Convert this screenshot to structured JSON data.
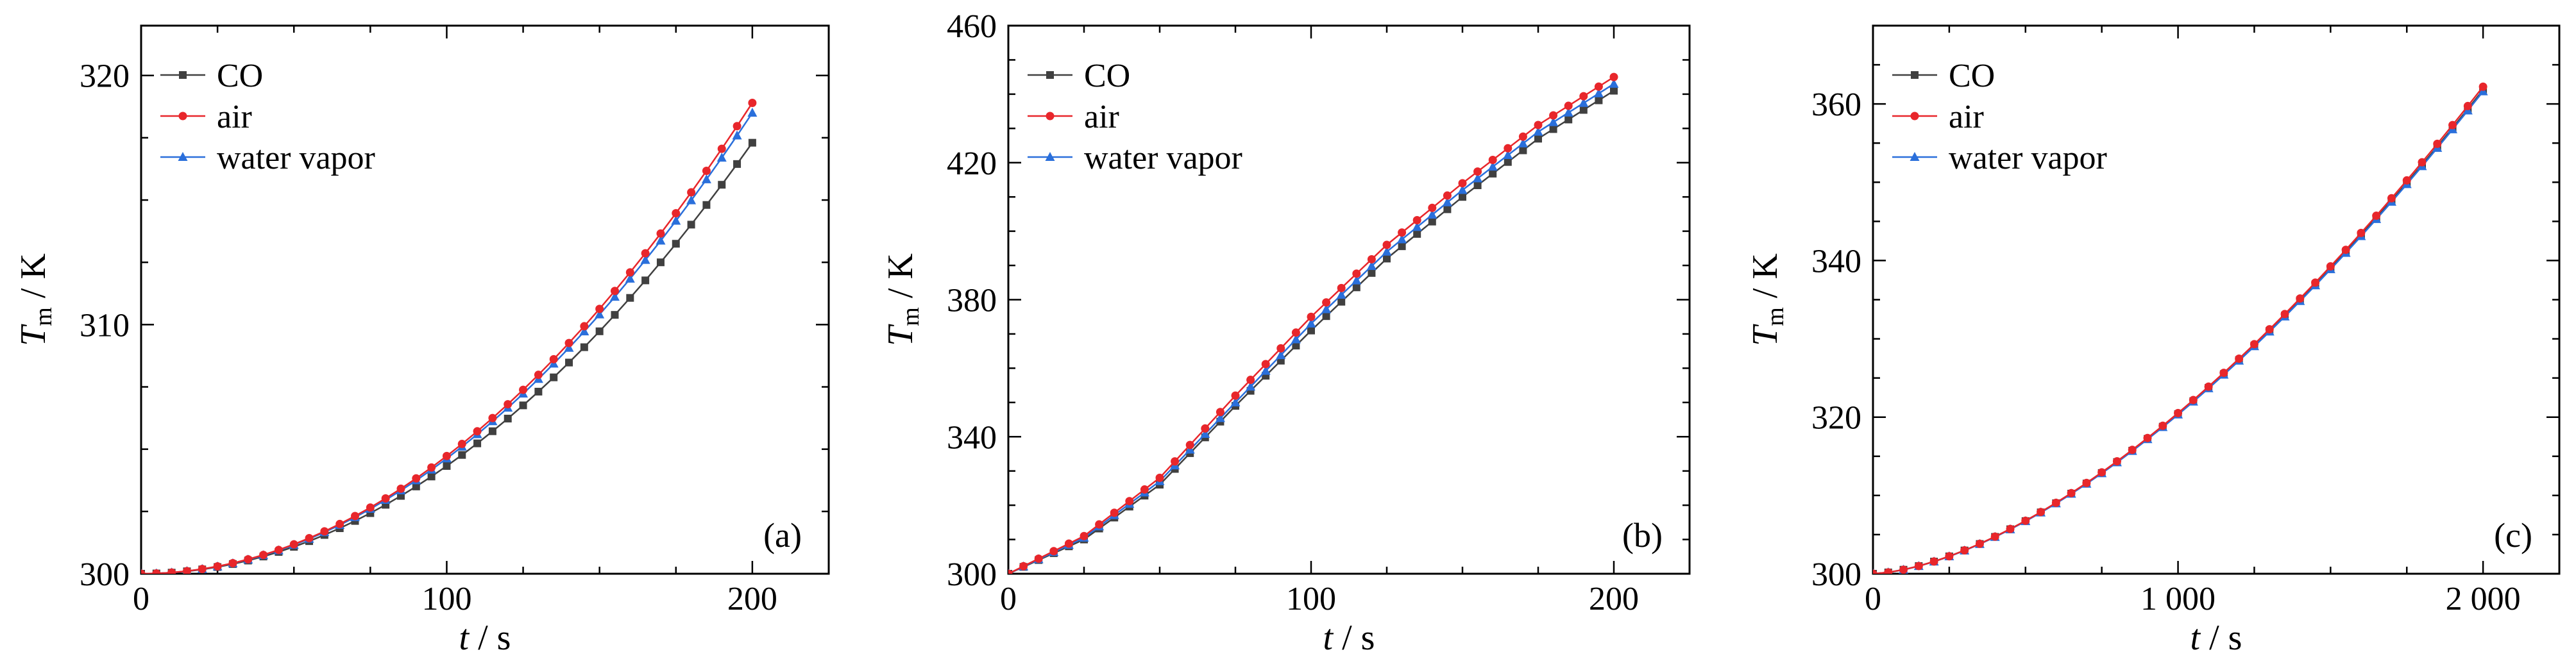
{
  "figure": {
    "panel_labels": [
      "(a)",
      "(b)",
      "(c)"
    ]
  },
  "axis_titles": {
    "y_main": "T",
    "y_sub": "m",
    "y_unit": " / K",
    "x_main": "t",
    "x_unit": " / s"
  },
  "legend": [
    "CO",
    "air",
    "water vapor"
  ],
  "colors": {
    "CO": "#404040",
    "air": "#e8262b",
    "water_vapor": "#2a6fdb",
    "axis": "#000000"
  },
  "chart_data": [
    {
      "type": "line",
      "panel": "(a)",
      "xlabel": "t / s",
      "ylabel": "Tm / K",
      "xlim": [
        0,
        225
      ],
      "ylim": [
        300,
        322
      ],
      "xticks": [
        0,
        100,
        200
      ],
      "xtick_labels": [
        "0",
        "100",
        "200"
      ],
      "yticks": [
        300,
        310,
        320
      ],
      "ytick_labels": [
        "300",
        "310",
        "320"
      ],
      "legend_position": "top-left",
      "series": [
        {
          "name": "CO",
          "marker": "square",
          "x_start": 0,
          "x_end": 200,
          "y_start": 300,
          "y_end": 317.3,
          "power": 2.0
        },
        {
          "name": "air",
          "marker": "circle",
          "x_start": 0,
          "x_end": 200,
          "y_start": 300,
          "y_end": 318.9,
          "power": 2.0
        },
        {
          "name": "water vapor",
          "marker": "triangle",
          "x_start": 0,
          "x_end": 200,
          "y_start": 300,
          "y_end": 318.5,
          "power": 2.0
        }
      ]
    },
    {
      "type": "line",
      "panel": "(b)",
      "xlabel": "t / s",
      "ylabel": "Tm / K",
      "xlim": [
        0,
        225
      ],
      "ylim": [
        300,
        460
      ],
      "xticks": [
        0,
        100,
        200
      ],
      "xtick_labels": [
        "0",
        "100",
        "200"
      ],
      "yticks": [
        300,
        340,
        380,
        420,
        460
      ],
      "ytick_labels": [
        "300",
        "340",
        "380",
        "420",
        "460"
      ],
      "legend_position": "top-left",
      "series": [
        {
          "name": "CO",
          "marker": "square",
          "x": [
            0,
            25,
            50,
            75,
            100,
            125,
            150,
            175,
            200
          ],
          "y": [
            300,
            310,
            326,
            349,
            371,
            392,
            410,
            427,
            441
          ]
        },
        {
          "name": "air",
          "marker": "circle",
          "x": [
            0,
            25,
            50,
            75,
            100,
            125,
            150,
            175,
            200
          ],
          "y": [
            300,
            311,
            328,
            352,
            375,
            396,
            414,
            431,
            445
          ]
        },
        {
          "name": "water vapor",
          "marker": "triangle",
          "x": [
            0,
            25,
            50,
            75,
            100,
            125,
            150,
            175,
            200
          ],
          "y": [
            300,
            310.5,
            327,
            350,
            373,
            394,
            412,
            429,
            443
          ]
        }
      ]
    },
    {
      "type": "line",
      "panel": "(c)",
      "xlabel": "t / s",
      "ylabel": "Tm / K",
      "xlim": [
        0,
        2250
      ],
      "ylim": [
        300,
        370
      ],
      "xticks": [
        0,
        1000,
        2000
      ],
      "xtick_labels": [
        "0",
        "1 000",
        "2 000"
      ],
      "yticks": [
        300,
        320,
        340,
        360
      ],
      "ytick_labels": [
        "300",
        "320",
        "340",
        "360"
      ],
      "legend_position": "top-left",
      "series": [
        {
          "name": "CO",
          "marker": "square",
          "x_start": 0,
          "x_end": 2000,
          "y_start": 300,
          "y_end": 361.8,
          "power": 1.6
        },
        {
          "name": "air",
          "marker": "circle",
          "x_start": 0,
          "x_end": 2000,
          "y_start": 300,
          "y_end": 362.2,
          "power": 1.6
        },
        {
          "name": "water vapor",
          "marker": "triangle",
          "x_start": 0,
          "x_end": 2000,
          "y_start": 300,
          "y_end": 361.6,
          "power": 1.6
        }
      ]
    }
  ]
}
